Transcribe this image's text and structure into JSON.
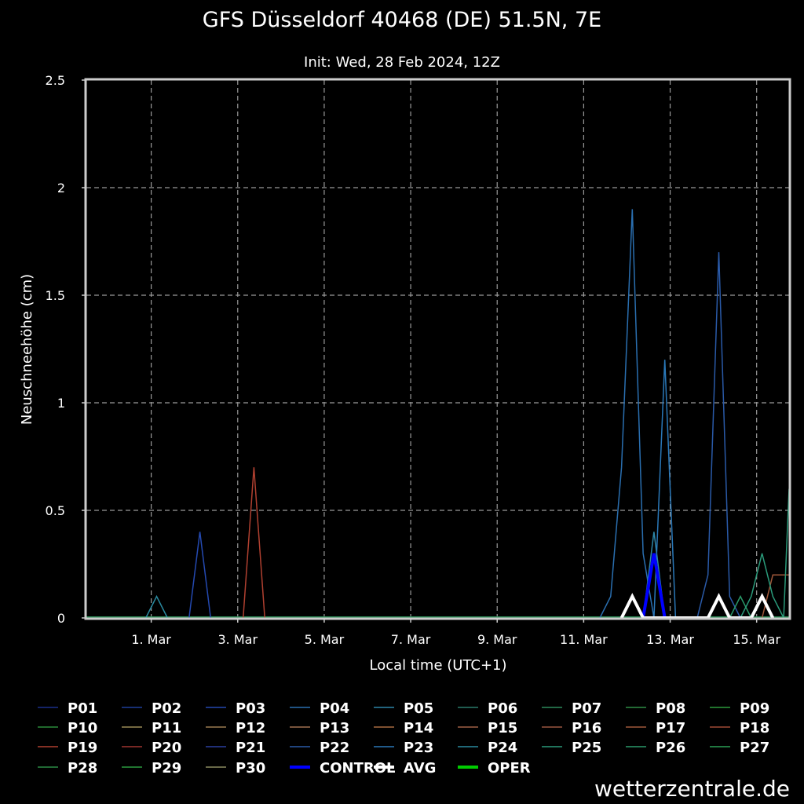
{
  "chart_data": {
    "type": "line",
    "title": "GFS Düsseldorf 40468 (DE) 51.5N, 7E",
    "subtitle": "Init: Wed, 28 Feb 2024, 12Z",
    "xlabel": "Local time (UTC+1)",
    "ylabel": "Neuschneehöhe (cm)",
    "xlim": [
      "2024-02-28T12:00",
      "2024-03-15T18:00"
    ],
    "ylim": [
      0,
      2.5
    ],
    "grid": true,
    "x_ticks": [
      {
        "date": "2024-03-01T00:00",
        "label": "1. Mar"
      },
      {
        "date": "2024-03-03T00:00",
        "label": "3. Mar"
      },
      {
        "date": "2024-03-05T00:00",
        "label": "5. Mar"
      },
      {
        "date": "2024-03-07T00:00",
        "label": "7. Mar"
      },
      {
        "date": "2024-03-09T00:00",
        "label": "9. Mar"
      },
      {
        "date": "2024-03-11T00:00",
        "label": "11. Mar"
      },
      {
        "date": "2024-03-13T00:00",
        "label": "13. Mar"
      },
      {
        "date": "2024-03-15T00:00",
        "label": "15. Mar"
      }
    ],
    "y_ticks": [
      {
        "value": 0,
        "label": "0"
      },
      {
        "value": 0.5,
        "label": "0.5"
      },
      {
        "value": 1,
        "label": "1"
      },
      {
        "value": 1.5,
        "label": "1.5"
      },
      {
        "value": 2,
        "label": "2"
      },
      {
        "value": 2.5,
        "label": "2.5"
      }
    ],
    "baseline": 0,
    "series": [
      {
        "name": "P01",
        "color": "#1b2f8a",
        "width": 1.5,
        "points": []
      },
      {
        "name": "P02",
        "color": "#1f3f9a",
        "width": 1.5,
        "points": []
      },
      {
        "name": "P03",
        "color": "#2449b0",
        "width": 1.5,
        "points": [
          [
            "2024-03-01T21:00",
            0
          ],
          [
            "2024-03-02T03:00",
            0.4
          ],
          [
            "2024-03-02T09:00",
            0
          ]
        ]
      },
      {
        "name": "P04",
        "color": "#2a6fb0",
        "width": 1.5,
        "points": [
          [
            "2024-03-11T09:00",
            0
          ],
          [
            "2024-03-11T15:00",
            0.1
          ],
          [
            "2024-03-11T21:00",
            0.7
          ],
          [
            "2024-03-12T03:00",
            1.9
          ],
          [
            "2024-03-12T09:00",
            0.3
          ],
          [
            "2024-03-12T15:00",
            0
          ]
        ]
      },
      {
        "name": "P05",
        "color": "#2d86a8",
        "width": 1.5,
        "points": [
          [
            "2024-03-12T09:00",
            0
          ],
          [
            "2024-03-12T15:00",
            0.4
          ],
          [
            "2024-03-12T21:00",
            0
          ]
        ]
      },
      {
        "name": "P06",
        "color": "#2a7a6a",
        "width": 1.5,
        "points": []
      },
      {
        "name": "P07",
        "color": "#2e8a5c",
        "width": 1.5,
        "points": []
      },
      {
        "name": "P08",
        "color": "#2f8e45",
        "width": 1.5,
        "points": []
      },
      {
        "name": "P09",
        "color": "#2c9a3c",
        "width": 1.5,
        "points": []
      },
      {
        "name": "P10",
        "color": "#2a8a3a",
        "width": 1.5,
        "points": []
      },
      {
        "name": "P11",
        "color": "#9a8a55",
        "width": 1.5,
        "points": []
      },
      {
        "name": "P12",
        "color": "#9a7a50",
        "width": 1.5,
        "points": []
      },
      {
        "name": "P13",
        "color": "#a07050",
        "width": 1.5,
        "points": []
      },
      {
        "name": "P14",
        "color": "#a86a40",
        "width": 1.5,
        "points": []
      },
      {
        "name": "P15",
        "color": "#a06045",
        "width": 1.5,
        "points": []
      },
      {
        "name": "P16",
        "color": "#9a5540",
        "width": 1.5,
        "points": []
      },
      {
        "name": "P17",
        "color": "#a0583a",
        "width": 1.5,
        "points": [
          [
            "2024-03-15T03:00",
            0
          ],
          [
            "2024-03-15T09:00",
            0.2
          ],
          [
            "2024-03-15T18:00",
            0.2
          ]
        ]
      },
      {
        "name": "P18",
        "color": "#a04a35",
        "width": 1.5,
        "points": []
      },
      {
        "name": "P19",
        "color": "#b04030",
        "width": 1.5,
        "points": [
          [
            "2024-03-03T03:00",
            0
          ],
          [
            "2024-03-03T09:00",
            0.7
          ],
          [
            "2024-03-03T15:00",
            0
          ]
        ]
      },
      {
        "name": "P20",
        "color": "#a03530",
        "width": 1.5,
        "points": []
      },
      {
        "name": "P21",
        "color": "#2a3fa0",
        "width": 1.5,
        "points": []
      },
      {
        "name": "P22",
        "color": "#2a5aa8",
        "width": 1.5,
        "points": [
          [
            "2024-03-13T15:00",
            0
          ],
          [
            "2024-03-13T21:00",
            0.2
          ],
          [
            "2024-03-14T03:00",
            1.7
          ],
          [
            "2024-03-14T09:00",
            0.1
          ],
          [
            "2024-03-14T15:00",
            0
          ]
        ]
      },
      {
        "name": "P23",
        "color": "#2a78b8",
        "width": 1.5,
        "points": [
          [
            "2024-03-12T15:00",
            0
          ],
          [
            "2024-03-12T21:00",
            1.2
          ],
          [
            "2024-03-13T03:00",
            0
          ]
        ]
      },
      {
        "name": "P24",
        "color": "#2a8aa0",
        "width": 1.5,
        "points": [
          [
            "2024-02-29T21:00",
            0
          ],
          [
            "2024-03-01T03:00",
            0.1
          ],
          [
            "2024-03-01T09:00",
            0
          ]
        ]
      },
      {
        "name": "P25",
        "color": "#2a9a7a",
        "width": 1.5,
        "points": [
          [
            "2024-03-14T15:00",
            0
          ],
          [
            "2024-03-14T21:00",
            0.1
          ],
          [
            "2024-03-15T03:00",
            0.3
          ],
          [
            "2024-03-15T09:00",
            0.1
          ],
          [
            "2024-03-15T15:00",
            0
          ],
          [
            "2024-03-15T18:00",
            0.6
          ]
        ]
      },
      {
        "name": "P26",
        "color": "#2a9a6a",
        "width": 1.5,
        "points": [
          [
            "2024-03-14T09:00",
            0
          ],
          [
            "2024-03-14T15:00",
            0.1
          ],
          [
            "2024-03-14T21:00",
            0
          ]
        ]
      },
      {
        "name": "P27",
        "color": "#2aa055",
        "width": 1.5,
        "points": []
      },
      {
        "name": "P28",
        "color": "#2a8a45",
        "width": 1.5,
        "points": []
      },
      {
        "name": "P29",
        "color": "#2a9a40",
        "width": 1.5,
        "points": []
      },
      {
        "name": "P30",
        "color": "#8a8a60",
        "width": 1.5,
        "points": []
      },
      {
        "name": "CONTROL",
        "color": "#0000ff",
        "width": 4,
        "points": [
          [
            "2024-03-12T09:00",
            0
          ],
          [
            "2024-03-12T15:00",
            0.3
          ],
          [
            "2024-03-12T21:00",
            0
          ]
        ]
      },
      {
        "name": "AVG",
        "color": "#ffffff",
        "width": 4,
        "points": [
          [
            "2024-03-11T21:00",
            0
          ],
          [
            "2024-03-12T03:00",
            0.1
          ],
          [
            "2024-03-12T09:00",
            0
          ],
          [
            "2024-03-13T21:00",
            0
          ],
          [
            "2024-03-14T03:00",
            0.1
          ],
          [
            "2024-03-14T09:00",
            0
          ],
          [
            "2024-03-14T21:00",
            0
          ],
          [
            "2024-03-15T03:00",
            0.1
          ],
          [
            "2024-03-15T09:00",
            0
          ]
        ]
      },
      {
        "name": "OPER",
        "color": "#00cc00",
        "width": 4,
        "points": []
      }
    ]
  },
  "brand": "wetterzentrale.de"
}
